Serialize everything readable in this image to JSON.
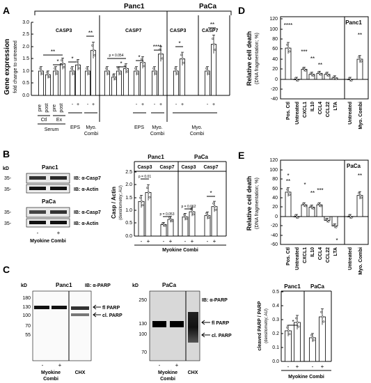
{
  "figure": {
    "panel_labels": {
      "A": "A",
      "B": "B",
      "C": "C",
      "D": "D",
      "E": "E"
    },
    "colors": {
      "bar": "#ffffff",
      "stroke": "#000000",
      "accent": "#000000"
    }
  },
  "panelA": {
    "group_top": {
      "panc1": "Panc1",
      "paca": "PaCa"
    },
    "subtitles": {
      "casp3": "CASP3",
      "casp7": "CASP7",
      "paca_casp3": "CASP3",
      "paca_casp7": "CASP7"
    },
    "ylabel_line1": "Gene expression",
    "ylabel_line2": "fold change to untreated",
    "sig": {
      "s1": "**",
      "s2": "*",
      "s3": "**",
      "s4": "*",
      "s5": "p = 0.054",
      "s6": "*",
      "s7": "*",
      "s8": "****",
      "s9": "*",
      "s10": "**"
    },
    "xlabels": {
      "pre1": "pre",
      "post1": "post",
      "pre2": "pre",
      "post2": "post",
      "ctl": "Ctl",
      "ex": "Ex",
      "serum": "Serum",
      "eps1": "EPS",
      "myo1": "Myo.",
      "combi1": "Combi",
      "eps2": "EPS",
      "myo2": "Myo.",
      "combi2": "Combi",
      "myo3": "Myo.",
      "combi3": "Combi",
      "m1": "-",
      "p1": "+",
      "m2": "-",
      "p2": "+",
      "m3": "-",
      "p3": "+",
      "m4": "-",
      "p4": "+",
      "m5": "-",
      "p5": "+",
      "m6": "-",
      "p6": "+"
    }
  },
  "panelB": {
    "kd": "kD",
    "blot_panc1": "Panc1",
    "blot_paca": "PaCa",
    "mw": {
      "a": "35-",
      "b": "35-",
      "c": "35-",
      "d": "35-"
    },
    "ib": {
      "c1": "IB: α-Casp7",
      "a1": "IB: α-Actin",
      "c2": "IB: α-Casp7",
      "a2": "IB: α-Actin"
    },
    "lanes": {
      "m": "-",
      "p": "+"
    },
    "lane_title": "Myokine Combi",
    "chart_groups": {
      "panc1": "Panc1",
      "paca": "PaCa"
    },
    "chart_sub": {
      "c3a": "Casp3",
      "c7a": "Casp7",
      "c3b": "Casp3",
      "c7b": "Casp7"
    },
    "ylabel_line1": "Casp / Actin",
    "ylabel_line2": "(densitometry; AU)",
    "sig": {
      "p1": "p = 0.01",
      "p2": "p = 0.053",
      "p3": "p = 0.062",
      "p4": "*"
    },
    "xlabel": "Myokine Combi",
    "xt": {
      "m1": "-",
      "p1": "+",
      "m2": "-",
      "p2": "+",
      "m3": "-",
      "p3": "+",
      "m4": "-",
      "p4": "+"
    }
  },
  "panelC": {
    "kd1": "kD",
    "title1": "Panc1",
    "ib1": "IB: α-PARP",
    "mw1": {
      "a": "180",
      "b": "130",
      "c": "100",
      "d": "70",
      "e": "55"
    },
    "arrows1": {
      "fl": "fl PARP",
      "cl": "cl. PARP"
    },
    "lanes1": {
      "m": "-",
      "p": "+"
    },
    "lane_title1_l1": "Myokine",
    "lane_title1_l2": "Combi",
    "chx1": "CHX",
    "kd2": "kD",
    "title2": "PaCa",
    "ib2": "IB: α-PARP",
    "mw2": {
      "a": "250",
      "b": "130",
      "c": "100",
      "d": "70"
    },
    "arrows2": {
      "fl": "fl PARP",
      "cl": "cl. PARP"
    },
    "lanes2": {
      "m": "-",
      "p": "+"
    },
    "lane_title2_l1": "Myokine",
    "lane_title2_l2": "Combi",
    "chx2": "CHX",
    "chart_groups": {
      "panc1": "Panc1",
      "paca": "PaCa"
    },
    "ylabel_line1": "cleaved PARP / PARP",
    "ylabel_line2": "(densitometry; AU)",
    "sig": {
      "s1": "*"
    },
    "xt": {
      "m1": "-",
      "p1": "+",
      "m2": "-",
      "p2": "+"
    },
    "xlabel": "Myokine Combi"
  },
  "panelD": {
    "title": "Panc1",
    "ylabel_line1": "Relative cell death",
    "ylabel_line2": "(DNA fragmentation; %)",
    "sig": {
      "posctl": "****",
      "cxcl1": "***",
      "il10": "**",
      "ccl4": "**",
      "combi": "**"
    },
    "xlabels": {
      "posctl": "Pos. Ctl",
      "untreated": "Untreated",
      "cxcl1": "CXCL1",
      "il10": "IL10",
      "ccl4": "CCL4",
      "ccl22": "CCL22",
      "lta": "LTA",
      "untreated2": "Untreated",
      "myocombi": "Myo. Combi"
    }
  },
  "panelE": {
    "title": "PaCa",
    "ylabel_line1": "Relative cell death",
    "ylabel_line2": "(DNA fragmentation; %)",
    "sig": {
      "posctl_a": "*",
      "posctl_b": "**",
      "cxcl1": "*",
      "il10": "**",
      "ccl4": "***",
      "lta": "*",
      "combi": "**"
    },
    "xlabels": {
      "posctl": "Pos. Ctl",
      "untreated": "Untreated",
      "cxcl1": "CXCL1",
      "il10": "IL10",
      "ccl4": "CCL4",
      "ccl22": "CCL22",
      "lta": "LTA",
      "untreated2": "Untreated",
      "myocombi": "Myo. Combi"
    }
  },
  "chart_data": [
    {
      "type": "bar",
      "ylabel": "Gene expression fold change to untreated",
      "ylim": [
        0,
        3.0
      ],
      "yticks": [
        0,
        0.5,
        1.0,
        1.5,
        2.0,
        2.5,
        3.0
      ],
      "series": [
        {
          "name": "CASP3 Serum",
          "values": [
            1.0,
            0.85,
            1.0,
            1.3
          ]
        },
        {
          "name": "CASP3 EPS",
          "values": [
            1.0,
            1.25
          ]
        },
        {
          "name": "CASP3 Myo. Combi",
          "values": [
            1.0,
            1.85
          ]
        },
        {
          "name": "CASP7 Serum",
          "values": [
            1.0,
            0.75,
            1.0,
            1.1
          ]
        },
        {
          "name": "CASP7 EPS",
          "values": [
            1.0,
            1.35
          ]
        },
        {
          "name": "CASP7 Myo. Combi",
          "values": [
            1.0,
            1.7
          ]
        },
        {
          "name": "PaCa CASP3 Myo. Combi",
          "values": [
            1.0,
            1.5
          ]
        },
        {
          "name": "PaCa CASP7 Myo. Combi",
          "values": [
            1.0,
            2.1
          ]
        }
      ]
    },
    {
      "type": "bar",
      "ylabel": "Casp / Actin (densitometry; AU)",
      "ylim": [
        0,
        2.5
      ],
      "yticks": [
        0,
        0.5,
        1.0,
        1.5,
        2.0,
        2.5
      ],
      "categories": [
        "Panc1 Casp3 -",
        "Panc1 Casp3 +",
        "Panc1 Casp7 -",
        "Panc1 Casp7 +",
        "PaCa Casp3 -",
        "PaCa Casp3 +",
        "PaCa Casp7 -",
        "PaCa Casp7 +"
      ],
      "values": [
        1.35,
        1.7,
        0.45,
        0.65,
        0.75,
        0.95,
        0.8,
        1.15
      ]
    },
    {
      "type": "bar",
      "ylabel": "cleaved PARP / PARP (densitometry; AU)",
      "ylim": [
        0,
        0.5
      ],
      "yticks": [
        0,
        0.1,
        0.2,
        0.3,
        0.4,
        0.5
      ],
      "categories": [
        "Panc1 -",
        "Panc1 +",
        "PaCa -",
        "PaCa +"
      ],
      "values": [
        0.22,
        0.28,
        0.17,
        0.32
      ]
    },
    {
      "type": "bar",
      "title": "Panc1",
      "ylabel": "Relative cell death (DNA fragmentation; %)",
      "ylim": [
        -40,
        120
      ],
      "yticks": [
        -40,
        -20,
        0,
        20,
        40,
        60,
        80,
        100,
        120
      ],
      "categories": [
        "Pos. Ctl",
        "Untreated",
        "CXCL1",
        "IL10",
        "CCL4",
        "CCL22",
        "LTA",
        "Untreated",
        "Myo. Combi"
      ],
      "values": [
        62,
        0,
        20,
        10,
        12,
        10,
        3,
        0,
        40
      ]
    },
    {
      "type": "bar",
      "title": "PaCa",
      "ylabel": "Relative cell death (DNA fragmentation; %)",
      "ylim": [
        -60,
        120
      ],
      "yticks": [
        -60,
        -40,
        -20,
        0,
        20,
        40,
        60,
        80,
        100,
        120
      ],
      "categories": [
        "Pos. Ctl",
        "Untreated",
        "CXCL1",
        "IL10",
        "CCL4",
        "CCL22",
        "LTA",
        "Untreated",
        "Myo. Combi"
      ],
      "values": [
        52,
        0,
        25,
        20,
        25,
        -8,
        -20,
        0,
        45
      ]
    }
  ]
}
